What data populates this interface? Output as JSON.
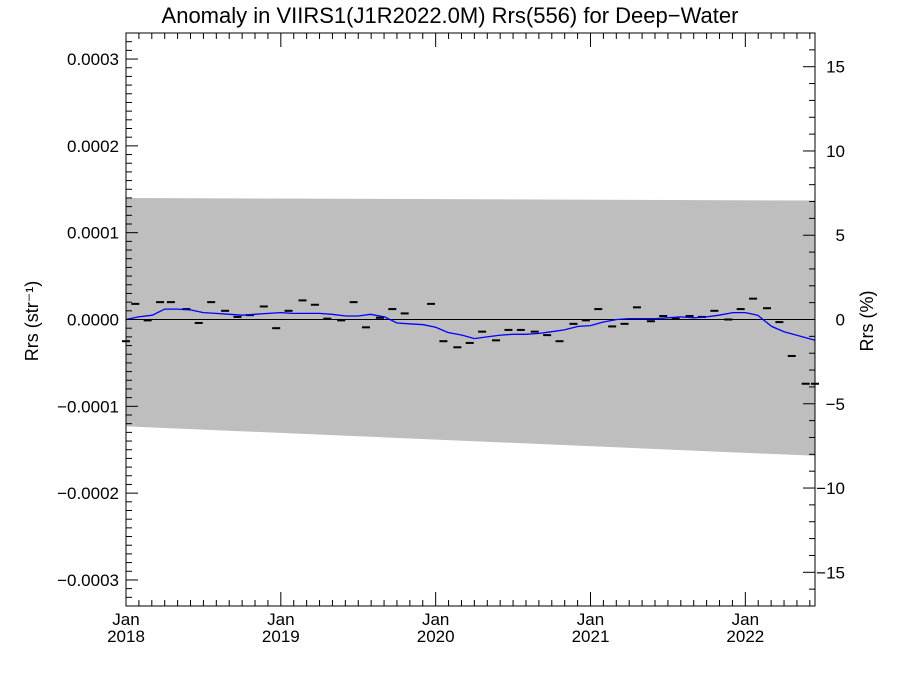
{
  "chart_data": {
    "type": "line",
    "title": "Anomaly in VIIRS1(J1R2022.0M) Rrs(556) for Deep−Water",
    "ylabel_left": "Rrs (str⁻¹)",
    "ylabel_right": "Rrs (%)",
    "xlim": [
      2018.0,
      2022.45
    ],
    "ylim_left": [
      -0.00033,
      0.00033
    ],
    "ylim_right": [
      -17,
      17
    ],
    "x_ticks": [
      {
        "value": 2018,
        "month": "Jan",
        "year": "2018"
      },
      {
        "value": 2019,
        "month": "Jan",
        "year": "2019"
      },
      {
        "value": 2020,
        "month": "Jan",
        "year": "2020"
      },
      {
        "value": 2021,
        "month": "Jan",
        "year": "2021"
      },
      {
        "value": 2022,
        "month": "Jan",
        "year": "2022"
      }
    ],
    "y_ticks_left": [
      {
        "value": 0.0003,
        "label": "0.0003"
      },
      {
        "value": 0.0002,
        "label": "0.0002"
      },
      {
        "value": 0.0001,
        "label": "0.0001"
      },
      {
        "value": 0.0,
        "label": "0.0000"
      },
      {
        "value": -0.0001,
        "label": "−0.0001"
      },
      {
        "value": -0.0002,
        "label": "−0.0002"
      },
      {
        "value": -0.0003,
        "label": "−0.0003"
      }
    ],
    "y_ticks_right": [
      {
        "value": 15,
        "label": "15"
      },
      {
        "value": 10,
        "label": "10"
      },
      {
        "value": 5,
        "label": "5"
      },
      {
        "value": 0,
        "label": "0"
      },
      {
        "value": -5,
        "label": "−5"
      },
      {
        "value": -10,
        "label": "−10"
      },
      {
        "value": -15,
        "label": "−15"
      }
    ],
    "band": {
      "color": "#bebebe",
      "x": [
        2018.0,
        2022.45
      ],
      "upper": [
        0.00014,
        0.000137
      ],
      "lower": [
        -0.000123,
        -0.000157
      ]
    },
    "zero_line": 0.0,
    "series": [
      {
        "kind": "markers",
        "color": "#000000",
        "x": [
          2018.0,
          2018.06,
          2018.14,
          2018.22,
          2018.29,
          2018.39,
          2018.47,
          2018.55,
          2018.64,
          2018.72,
          2018.8,
          2018.89,
          2018.97,
          2019.05,
          2019.14,
          2019.22,
          2019.3,
          2019.39,
          2019.47,
          2019.55,
          2019.64,
          2019.72,
          2019.8,
          2019.97,
          2020.05,
          2020.14,
          2020.22,
          2020.3,
          2020.39,
          2020.47,
          2020.55,
          2020.64,
          2020.72,
          2020.8,
          2020.89,
          2020.97,
          2021.05,
          2021.14,
          2021.22,
          2021.3,
          2021.39,
          2021.47,
          2021.55,
          2021.64,
          2021.72,
          2021.8,
          2021.89,
          2021.97,
          2022.05,
          2022.14,
          2022.22,
          2022.3,
          2022.39,
          2022.45
        ],
        "y": [
          -2.5e-05,
          1.8e-05,
          -1e-06,
          2e-05,
          2e-05,
          1.2e-05,
          -4e-06,
          2e-05,
          1e-05,
          3e-06,
          5e-06,
          1.5e-05,
          -1e-05,
          1e-05,
          2.2e-05,
          1.7e-05,
          1e-06,
          -1e-06,
          2e-05,
          -9e-06,
          2e-06,
          1.2e-05,
          7e-06,
          1.8e-05,
          -2.5e-05,
          -3.2e-05,
          -2.7e-05,
          -1.4e-05,
          -2.4e-05,
          -1.2e-05,
          -1.2e-05,
          -1.4e-05,
          -1.8e-05,
          -2.5e-05,
          -5e-06,
          -1e-06,
          1.2e-05,
          -8e-06,
          -5e-06,
          1.4e-05,
          -2e-06,
          4e-06,
          1e-06,
          4e-06,
          3e-06,
          1e-05,
          0.0,
          1.2e-05,
          2.4e-05,
          1.3e-05,
          -3e-06,
          -4.2e-05,
          -7.4e-05,
          -7.4e-05
        ]
      },
      {
        "kind": "line",
        "color": "#0000ff",
        "x": [
          2018.0,
          2018.08,
          2018.17,
          2018.25,
          2018.33,
          2018.42,
          2018.5,
          2018.58,
          2018.67,
          2018.75,
          2018.83,
          2018.92,
          2019.0,
          2019.08,
          2019.17,
          2019.25,
          2019.33,
          2019.42,
          2019.5,
          2019.58,
          2019.67,
          2019.75,
          2019.83,
          2019.92,
          2020.0,
          2020.08,
          2020.17,
          2020.25,
          2020.33,
          2020.42,
          2020.5,
          2020.58,
          2020.67,
          2020.75,
          2020.83,
          2020.92,
          2021.0,
          2021.08,
          2021.17,
          2021.25,
          2021.33,
          2021.42,
          2021.5,
          2021.58,
          2021.67,
          2021.75,
          2021.83,
          2021.92,
          2022.0,
          2022.08,
          2022.17,
          2022.25,
          2022.33,
          2022.45
        ],
        "y": [
          0.0,
          3e-06,
          5e-06,
          1.2e-05,
          1.2e-05,
          1.1e-05,
          8e-06,
          7e-06,
          6e-06,
          5e-06,
          6e-06,
          7e-06,
          8e-06,
          7e-06,
          7e-06,
          7e-06,
          6e-06,
          4e-06,
          4e-06,
          6e-06,
          3e-06,
          -4e-06,
          -5e-06,
          -6e-06,
          -9e-06,
          -1.5e-05,
          -1.8e-05,
          -2.2e-05,
          -2e-05,
          -1.8e-05,
          -1.7e-05,
          -1.7e-05,
          -1.6e-05,
          -1.4e-05,
          -1.2e-05,
          -8e-06,
          -7e-06,
          -3e-06,
          0.0,
          1e-06,
          1e-06,
          1e-06,
          2e-06,
          3e-06,
          2e-06,
          3e-06,
          5e-06,
          8e-06,
          8e-06,
          5e-06,
          -8e-06,
          -1.4e-05,
          -1.8e-05,
          -2.4e-05
        ]
      }
    ]
  }
}
